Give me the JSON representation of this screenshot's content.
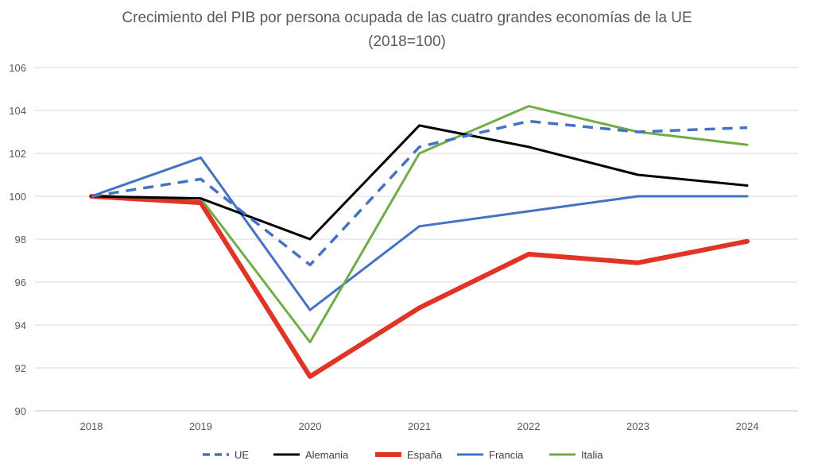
{
  "chart_data": {
    "type": "line",
    "title": "Crecimiento del PIB por persona ocupada de las cuatro grandes economías de la UE",
    "subtitle": "(2018=100)",
    "xlabel": "",
    "ylabel": "",
    "categories": [
      "2018",
      "2019",
      "2020",
      "2021",
      "2022",
      "2023",
      "2024"
    ],
    "ylim": [
      90,
      106
    ],
    "yticks": [
      90,
      92,
      94,
      96,
      98,
      100,
      102,
      104,
      106
    ],
    "grid": true,
    "legend_position": "bottom",
    "series": [
      {
        "name": "UE",
        "color": "#4472C4",
        "style": "dashed",
        "values": [
          100,
          100.8,
          96.8,
          102.3,
          103.5,
          103.0,
          103.2
        ]
      },
      {
        "name": "Alemania",
        "color": "#000000",
        "style": "solid",
        "values": [
          100,
          99.9,
          98.0,
          103.3,
          102.3,
          101.0,
          100.5
        ]
      },
      {
        "name": "España",
        "color": "#E03526",
        "style": "thick",
        "values": [
          100,
          99.7,
          91.6,
          94.8,
          97.3,
          96.9,
          97.9
        ]
      },
      {
        "name": "Francia",
        "color": "#4472C4",
        "style": "solid",
        "values": [
          100,
          101.8,
          94.7,
          98.6,
          99.3,
          100.0,
          100.0
        ]
      },
      {
        "name": "Italia",
        "color": "#70AD47",
        "style": "solid",
        "values": [
          100,
          99.9,
          93.2,
          102.0,
          104.2,
          103.0,
          102.4
        ]
      }
    ]
  }
}
